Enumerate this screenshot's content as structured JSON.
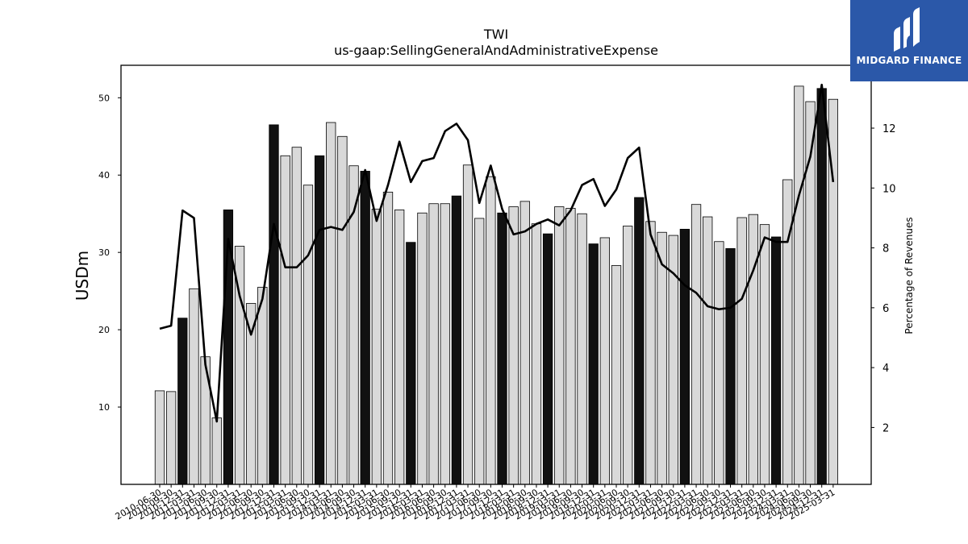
{
  "brand": {
    "name": "MIDGARD FINANCE",
    "color": "#2b58a9"
  },
  "chart_data": {
    "type": "bar",
    "title": "TWI",
    "subtitle": "us-gaap:SellingGeneralAndAdministrativeExpense",
    "ylabel": "USDm",
    "y2label": "Percentage of Revenues",
    "ylim": [
      0,
      54.2
    ],
    "y2lim": [
      0.1,
      14.1
    ],
    "yticks": [
      10,
      20,
      30,
      40,
      50
    ],
    "y2ticks": [
      2,
      4,
      6,
      8,
      10,
      12
    ],
    "categories": [
      "2010-06-30",
      "2010-09-30",
      "2010-12-31",
      "2011-03-31",
      "2011-06-30",
      "2011-09-30",
      "2011-12-31",
      "2012-03-31",
      "2012-06-30",
      "2012-09-30",
      "2012-12-31",
      "2013-03-31",
      "2013-06-30",
      "2013-09-30",
      "2013-12-31",
      "2014-03-31",
      "2014-06-30",
      "2014-09-30",
      "2014-12-31",
      "2015-03-31",
      "2015-06-30",
      "2015-09-30",
      "2015-12-31",
      "2016-03-31",
      "2016-06-30",
      "2016-09-30",
      "2016-12-31",
      "2017-03-31",
      "2017-06-30",
      "2017-09-30",
      "2017-12-31",
      "2018-03-31",
      "2018-06-30",
      "2018-09-30",
      "2018-12-31",
      "2019-03-31",
      "2019-06-30",
      "2019-09-30",
      "2019-12-31",
      "2020-03-31",
      "2020-06-30",
      "2020-09-30",
      "2020-12-31",
      "2021-03-31",
      "2021-06-30",
      "2021-09-30",
      "2021-12-31",
      "2022-03-31",
      "2022-06-30",
      "2022-09-30",
      "2022-12-31",
      "2023-03-31",
      "2023-06-30",
      "2023-09-30",
      "2023-12-31",
      "2024-03-31",
      "2024-06-30",
      "2024-09-30",
      "2024-12-31",
      "2025-03-31"
    ],
    "highlight_category_suffix": "-12-31",
    "series": [
      {
        "kind": "bar",
        "color_default": "#d9d9d9",
        "color_highlight": "#111111",
        "values": [
          12.1,
          12.0,
          21.5,
          25.3,
          16.5,
          8.6,
          35.5,
          30.8,
          23.4,
          25.5,
          46.5,
          42.5,
          43.6,
          38.7,
          42.5,
          46.8,
          45.0,
          41.2,
          40.5,
          35.6,
          37.8,
          35.5,
          31.3,
          35.1,
          36.3,
          36.3,
          37.3,
          41.3,
          34.4,
          39.8,
          35.1,
          35.9,
          36.6,
          33.7,
          32.4,
          35.9,
          35.7,
          35.0,
          31.1,
          31.9,
          28.3,
          33.4,
          37.1,
          34.0,
          32.6,
          32.2,
          33.0,
          36.2,
          34.6,
          31.4,
          30.5,
          34.5,
          34.9,
          33.6,
          32.0,
          39.4,
          51.5,
          49.5,
          51.2,
          49.8
        ]
      },
      {
        "kind": "line",
        "axis": "right",
        "color": "#000000",
        "values": [
          5.3,
          5.4,
          9.25,
          9.0,
          4.1,
          2.2,
          8.3,
          6.4,
          5.1,
          6.3,
          8.8,
          7.35,
          7.35,
          7.75,
          8.6,
          8.7,
          8.6,
          9.2,
          10.6,
          8.9,
          10.1,
          11.55,
          10.2,
          10.9,
          11.0,
          11.9,
          12.15,
          11.6,
          9.5,
          10.75,
          9.3,
          8.45,
          8.55,
          8.8,
          8.95,
          8.75,
          9.25,
          10.1,
          10.3,
          9.4,
          9.95,
          11.0,
          11.35,
          8.45,
          7.45,
          7.15,
          6.75,
          6.5,
          6.05,
          5.95,
          6.0,
          6.3,
          7.25,
          8.35,
          8.2,
          8.2,
          9.75,
          11.05,
          13.45,
          10.2
        ]
      }
    ]
  }
}
